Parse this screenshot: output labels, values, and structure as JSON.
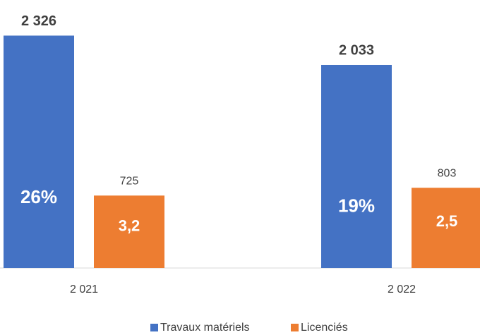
{
  "chart_data": {
    "type": "bar",
    "categories": [
      "2 021",
      "2 022"
    ],
    "series": [
      {
        "name": "Travaux matériels",
        "color": "#4472c4",
        "values": [
          2326,
          2033
        ],
        "value_labels": [
          "2 326",
          "2 033"
        ],
        "annotations": [
          "26%",
          "19%"
        ]
      },
      {
        "name": "Licenciés",
        "color": "#ed7d31",
        "values": [
          725,
          803
        ],
        "annotations": [
          "3,2",
          "2,5"
        ]
      }
    ],
    "ylim": [
      0,
      2400
    ],
    "legend": "bottom"
  }
}
